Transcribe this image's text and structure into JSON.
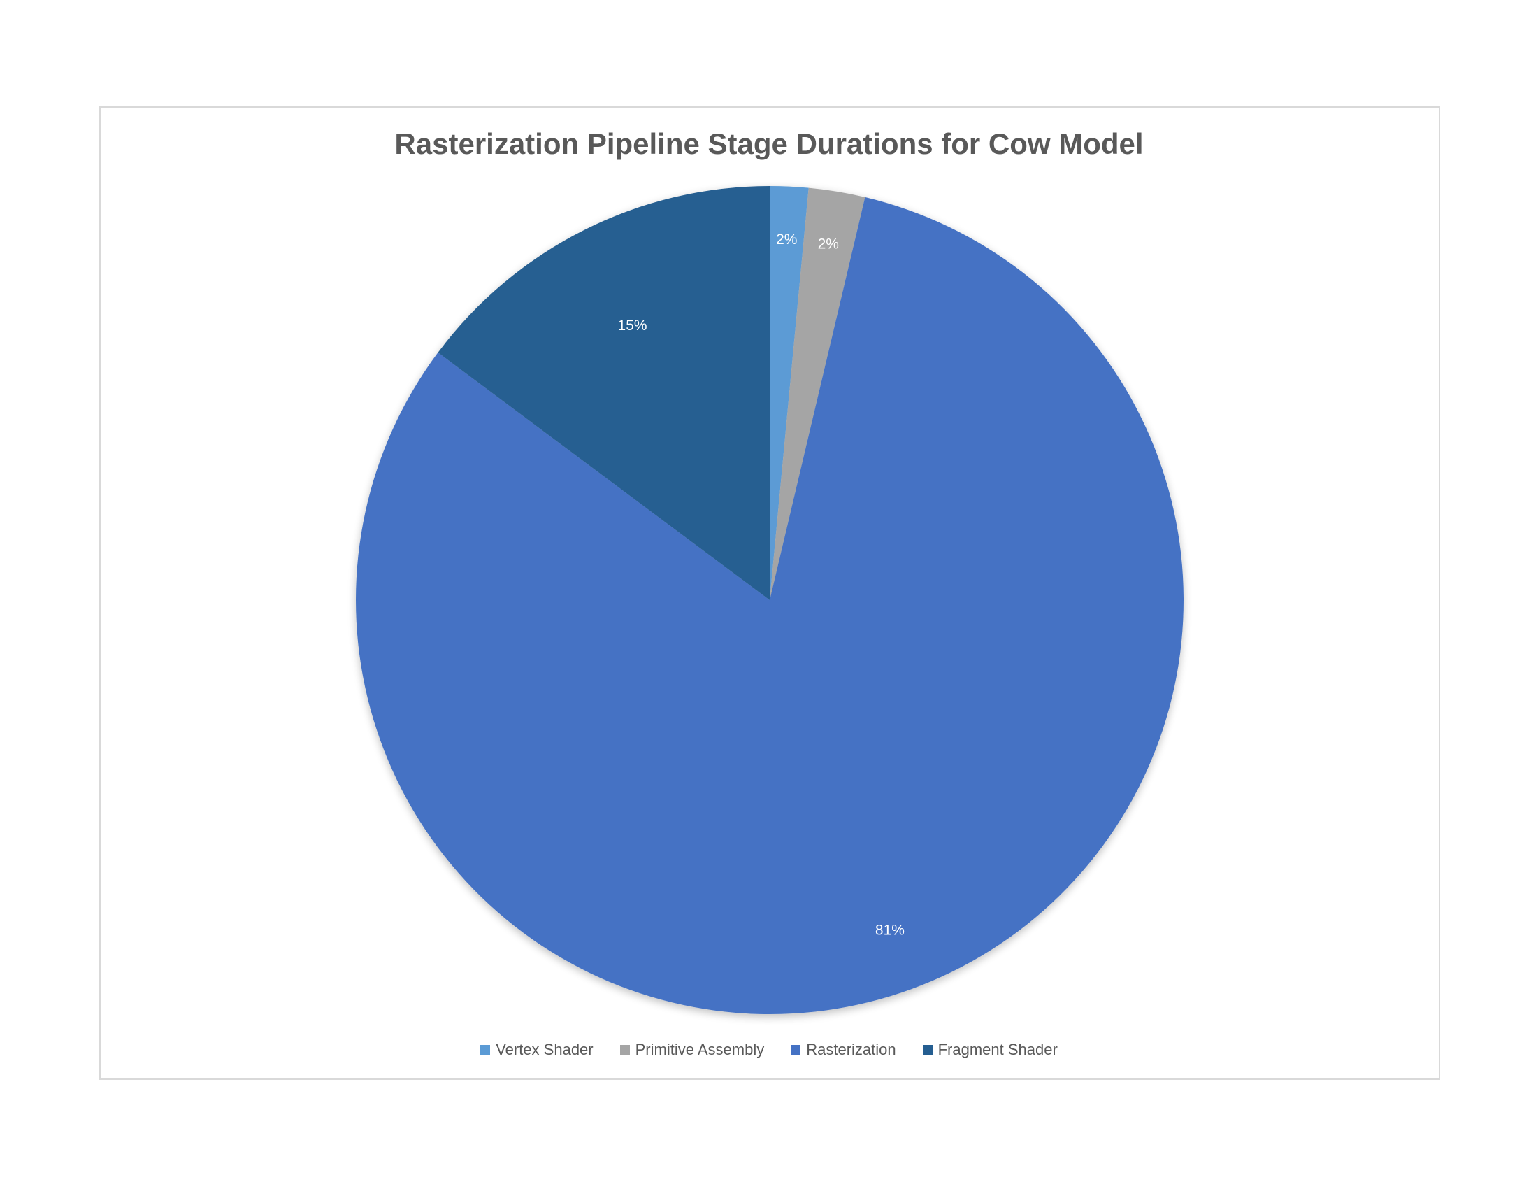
{
  "chart_data": {
    "type": "pie",
    "title": "Rasterization Pipeline Stage Durations for Cow Model",
    "categories": [
      "Vertex Shader",
      "Primitive Assembly",
      "Rasterization",
      "Fragment Shader"
    ],
    "values": [
      1.5,
      2.2,
      81.5,
      14.8
    ],
    "data_labels": [
      "2%",
      "2%",
      "81%",
      "15%"
    ],
    "colors": [
      "#5b9bd5",
      "#a5a5a5",
      "#4472c4",
      "#255e91"
    ],
    "legend_position": "bottom",
    "start_angle": "12 o'clock",
    "direction": "clockwise"
  }
}
